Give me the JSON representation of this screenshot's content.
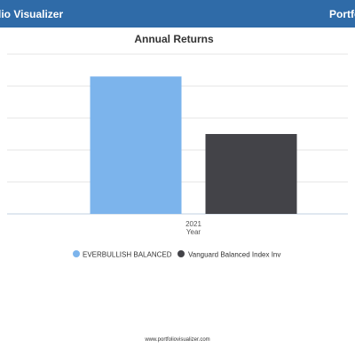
{
  "header": {
    "brand_left": "lio Visualizer",
    "brand_right": "Portfo",
    "bar_color": "#2f6ba8"
  },
  "chart_data": {
    "type": "bar",
    "title": "Annual Returns",
    "xlabel": "Year",
    "ylabel": "",
    "categories": [
      "2021"
    ],
    "series": [
      {
        "name": "EVERBULLISH BALANCED",
        "values": [
          21.5
        ],
        "color": "#7cb4ec"
      },
      {
        "name": "Vanguard Balanced Index Inv",
        "values": [
          12.5
        ],
        "color": "#434348"
      }
    ],
    "ylim": [
      0,
      25
    ],
    "grid": true,
    "legend_position": "bottom"
  },
  "footer": {
    "url": "www.portfoliovisualizer.com"
  }
}
